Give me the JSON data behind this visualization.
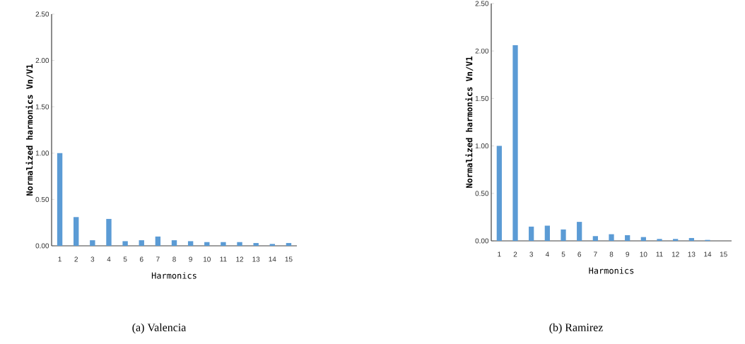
{
  "chart_data": [
    {
      "type": "bar",
      "categories": [
        "1",
        "2",
        "3",
        "4",
        "5",
        "6",
        "7",
        "8",
        "9",
        "10",
        "11",
        "12",
        "13",
        "14",
        "15"
      ],
      "values": [
        1.0,
        0.31,
        0.06,
        0.29,
        0.05,
        0.06,
        0.1,
        0.06,
        0.05,
        0.04,
        0.04,
        0.04,
        0.03,
        0.02,
        0.03
      ],
      "color": "#5b9bd5",
      "ylim": [
        0,
        2.5
      ],
      "yticks": [
        {
          "value": 0,
          "label": "0.00"
        },
        {
          "value": 0.5,
          "label": "0.50"
        },
        {
          "value": 1.0,
          "label": "1.00"
        },
        {
          "value": 1.5,
          "label": "1.50"
        },
        {
          "value": 2.0,
          "label": "2.00"
        },
        {
          "value": 2.5,
          "label": "2.50"
        }
      ],
      "xlabel": "Harmonics",
      "ylabel": "Normalized harmonics Vn/V1",
      "annotations": [
        "(a) Valencia"
      ]
    },
    {
      "type": "bar",
      "categories": [
        "1",
        "2",
        "3",
        "4",
        "5",
        "6",
        "7",
        "8",
        "9",
        "10",
        "11",
        "12",
        "13",
        "14",
        "15"
      ],
      "values": [
        1.0,
        2.06,
        0.15,
        0.16,
        0.12,
        0.2,
        0.05,
        0.07,
        0.06,
        0.04,
        0.02,
        0.02,
        0.03,
        0.01,
        0.0
      ],
      "color": "#5b9bd5",
      "ylim": [
        0,
        2.5
      ],
      "yticks": [
        {
          "value": 0,
          "label": "0.00"
        },
        {
          "value": 0.5,
          "label": "0.50"
        },
        {
          "value": 1.0,
          "label": "1.00"
        },
        {
          "value": 1.5,
          "label": "1.50"
        },
        {
          "value": 2.0,
          "label": "2.00"
        },
        {
          "value": 2.5,
          "label": "2.50"
        }
      ],
      "xlabel": "Harmonics",
      "ylabel": "Normalized harmonics Vn/V1",
      "annotations": [
        "(b) Ramirez"
      ]
    }
  ]
}
